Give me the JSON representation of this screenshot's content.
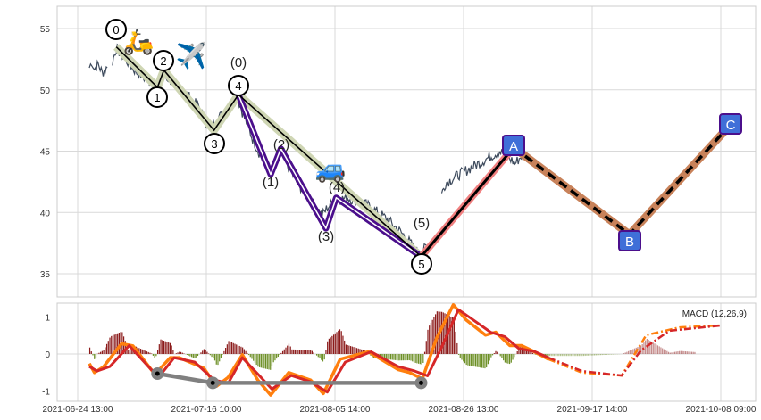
{
  "chart_data": {
    "type": "line",
    "title": "",
    "x_ticks": [
      "2021-06-24 13:00",
      "2021-07-16 10:00",
      "2021-08-05 14:00",
      "2021-08-26 13:00",
      "2021-09-17 14:00",
      "2021-10-08 09:00"
    ],
    "x_units_note": "x values are positions on the time axis where 0..5 correspond to the x tick labels",
    "price_panel": {
      "y_ticks": [
        35,
        40,
        45,
        50,
        55
      ],
      "ylim": [
        32.3,
        56.8
      ],
      "price_segments": [
        [
          [
            0.09,
            51.8
          ],
          [
            0.11,
            52.3
          ],
          [
            0.13,
            51.7
          ],
          [
            0.16,
            52.1
          ],
          [
            0.19,
            51.4
          ],
          [
            0.23,
            51.8
          ]
        ],
        [
          [
            0.27,
            52.3
          ],
          [
            0.3,
            53.4
          ],
          [
            0.33,
            53
          ],
          [
            0.45,
            51.5
          ],
          [
            0.6,
            50.3
          ],
          [
            0.62,
            49.8
          ],
          [
            0.66,
            51.2
          ],
          [
            0.72,
            50.8
          ],
          [
            0.85,
            49.6
          ],
          [
            0.95,
            48.5
          ],
          [
            1.02,
            46.8
          ],
          [
            1.08,
            47.6
          ],
          [
            1.18,
            48.5
          ],
          [
            1.24,
            49.4
          ],
          [
            1.28,
            48.2
          ],
          [
            1.36,
            46
          ],
          [
            1.45,
            44
          ],
          [
            1.52,
            43.5
          ],
          [
            1.58,
            44.8
          ],
          [
            1.7,
            42.5
          ],
          [
            1.85,
            40.5
          ],
          [
            1.9,
            39.8
          ],
          [
            1.95,
            40.5
          ],
          [
            2.0,
            41
          ],
          [
            2.1,
            41.2
          ],
          [
            2.25,
            40.6
          ],
          [
            2.4,
            39.5
          ],
          [
            2.55,
            38
          ],
          [
            2.62,
            37
          ],
          [
            2.66,
            36.6
          ],
          [
            2.72,
            37.3
          ],
          [
            2.8,
            38
          ]
        ],
        [
          [
            2.83,
            41.5
          ],
          [
            2.86,
            42.4
          ],
          [
            2.95,
            43
          ],
          [
            3.05,
            43.6
          ],
          [
            3.15,
            44.2
          ],
          [
            3.28,
            45
          ],
          [
            3.35,
            44.5
          ],
          [
            3.4,
            44
          ],
          [
            3.45,
            44.6
          ],
          [
            3.55,
            44.3
          ]
        ]
      ],
      "impulse_wave": {
        "labels": [
          "0",
          "1",
          "2",
          "3",
          "4",
          "5"
        ],
        "points": [
          [
            0.3,
            53.5
          ],
          [
            0.62,
            50.2
          ],
          [
            0.67,
            51.6
          ],
          [
            1.06,
            46.7
          ],
          [
            1.25,
            49.6
          ],
          [
            2.67,
            36.4
          ]
        ]
      },
      "sub_wave": {
        "labels": [
          "(0)",
          "(1)",
          "(2)",
          "(3)",
          "(4)",
          "(5)"
        ],
        "points": [
          [
            1.25,
            49.6
          ],
          [
            1.5,
            43.1
          ],
          [
            1.58,
            45.2
          ],
          [
            1.93,
            38.7
          ],
          [
            2.01,
            41.2
          ],
          [
            2.67,
            36.4
          ]
        ]
      },
      "corrective_wave": {
        "labels": [
          "A",
          "B",
          "C"
        ],
        "points": [
          [
            3.39,
            45.3
          ],
          [
            4.29,
            38.2
          ],
          [
            5.08,
            47.2
          ]
        ]
      },
      "icons": [
        "scooter",
        "airplane",
        "car"
      ],
      "icon_glyphs": [
        "🛵",
        "✈️",
        "🚙"
      ]
    },
    "macd_panel": {
      "label": "MACD (12,26,9)",
      "y_ticks": [
        -1,
        0,
        1
      ],
      "ylim": [
        -1.2,
        1.4
      ],
      "macd": [
        [
          0.09,
          -0.26
        ],
        [
          0.13,
          -0.5
        ],
        [
          0.2,
          -0.35
        ],
        [
          0.34,
          0.28
        ],
        [
          0.43,
          0.22
        ],
        [
          0.6,
          -0.55
        ],
        [
          0.72,
          -0.1
        ],
        [
          0.79,
          -0.1
        ],
        [
          0.98,
          -0.38
        ],
        [
          1.08,
          -0.87
        ],
        [
          1.17,
          -0.63
        ],
        [
          1.28,
          -0.02
        ],
        [
          1.4,
          -0.7
        ],
        [
          1.5,
          -1.11
        ],
        [
          1.64,
          -0.5
        ],
        [
          1.81,
          -0.7
        ],
        [
          1.91,
          -1.07
        ],
        [
          2.04,
          -0.14
        ],
        [
          2.26,
          0.06
        ],
        [
          2.49,
          -0.42
        ],
        [
          2.58,
          -0.5
        ],
        [
          2.68,
          -0.67
        ],
        [
          2.79,
          0.43
        ],
        [
          2.92,
          1.33
        ],
        [
          3.02,
          0.92
        ],
        [
          3.17,
          0.51
        ],
        [
          3.25,
          0.59
        ],
        [
          3.36,
          0.23
        ],
        [
          3.45,
          0.23
        ],
        [
          3.53,
          0.1
        ],
        [
          3.66,
          -0.14
        ]
      ],
      "signal": [
        [
          0.09,
          -0.34
        ],
        [
          0.15,
          -0.46
        ],
        [
          0.25,
          -0.34
        ],
        [
          0.4,
          0.23
        ],
        [
          0.57,
          -0.42
        ],
        [
          0.64,
          -0.58
        ],
        [
          0.75,
          -0.1
        ],
        [
          0.91,
          -0.22
        ],
        [
          1.06,
          -0.7
        ],
        [
          1.17,
          -0.79
        ],
        [
          1.28,
          -0.1
        ],
        [
          1.4,
          -0.54
        ],
        [
          1.51,
          -0.95
        ],
        [
          1.66,
          -0.58
        ],
        [
          1.81,
          -0.75
        ],
        [
          1.94,
          -1.03
        ],
        [
          2.08,
          -0.22
        ],
        [
          2.28,
          0.06
        ],
        [
          2.49,
          -0.34
        ],
        [
          2.62,
          -0.46
        ],
        [
          2.72,
          -0.59
        ],
        [
          2.83,
          0.19
        ],
        [
          2.96,
          1.2
        ],
        [
          3.06,
          0.96
        ],
        [
          3.21,
          0.59
        ],
        [
          3.32,
          0.47
        ],
        [
          3.43,
          0.15
        ],
        [
          3.55,
          0.07
        ],
        [
          3.66,
          -0.1
        ]
      ],
      "macd_forecast": [
        [
          3.66,
          -0.14
        ],
        [
          3.92,
          -0.5
        ],
        [
          4.23,
          -0.58
        ],
        [
          4.42,
          0.51
        ],
        [
          4.68,
          0.72
        ],
        [
          5.0,
          0.77
        ]
      ],
      "signal_forecast": [
        [
          3.66,
          -0.1
        ],
        [
          3.92,
          -0.46
        ],
        [
          4.23,
          -0.58
        ],
        [
          4.38,
          0.1
        ],
        [
          4.6,
          0.63
        ],
        [
          5.0,
          0.77
        ]
      ],
      "divergence_line": [
        [
          0.62,
          -0.53
        ],
        [
          1.05,
          -0.78
        ],
        [
          2.67,
          -0.78
        ]
      ]
    },
    "colors": {
      "price": "#3d4a5c",
      "impulse_halo": "#cfd6b4",
      "sub_wave": "#4b0f8c",
      "a_leg": "#f08080",
      "bc_leg": "#c8825a",
      "abc_box": "#3f6fd8",
      "abc_border": "#4b0f8c",
      "macd": "#ff7f0e",
      "signal": "#d62728",
      "hist_pos": "#8b1a1a",
      "hist_neg": "#6b8e23",
      "divergence": "#808080"
    }
  }
}
